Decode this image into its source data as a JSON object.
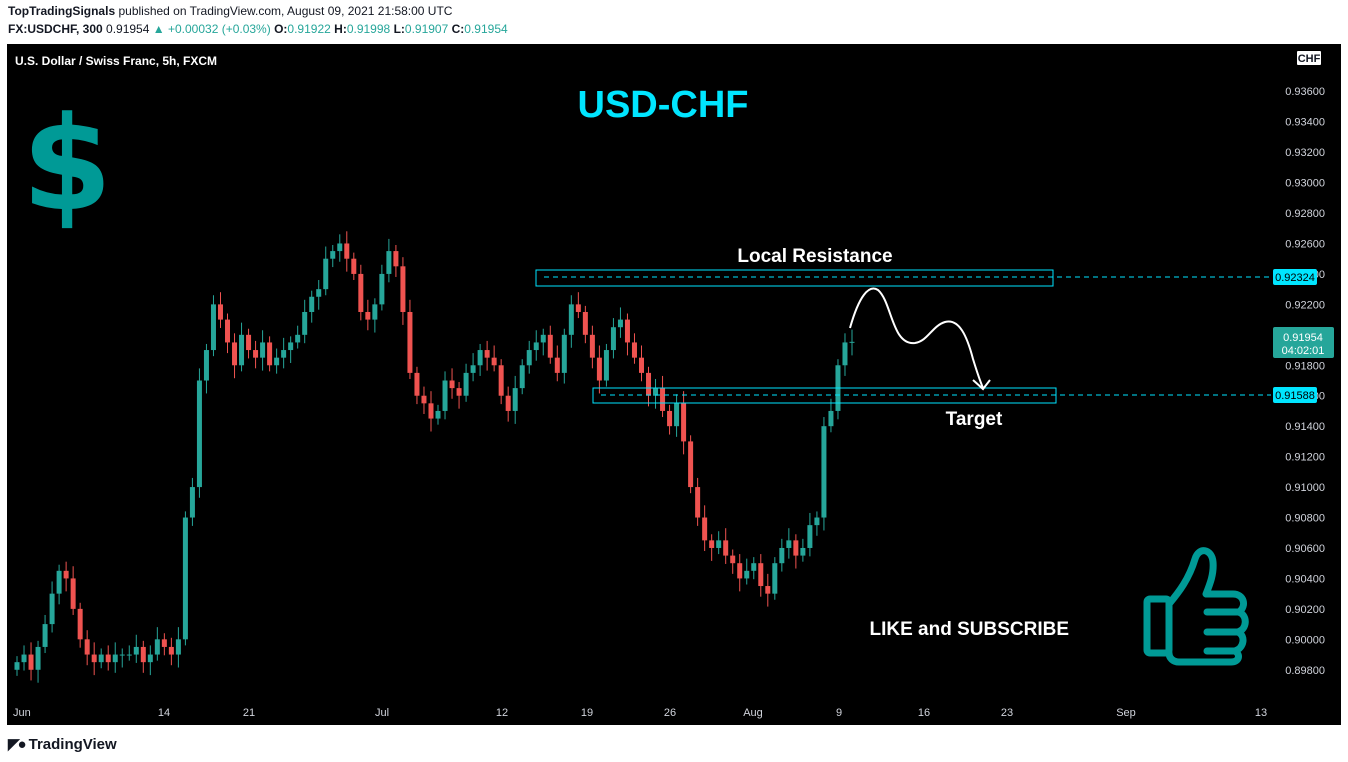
{
  "header": {
    "publisher": "TopTradingSignals",
    "published_text": "published on TradingView.com, August 09, 2021 21:58:00 UTC",
    "symbol": "FX:USDCHF, 300",
    "last": "0.91954",
    "change": "▲ +0.00032 (+0.03%)",
    "o_label": "O:",
    "o": "0.91922",
    "h_label": "H:",
    "h": "0.91998",
    "l_label": "L:",
    "l": "0.91907",
    "c_label": "C:",
    "c": "0.91954"
  },
  "legend": {
    "instrument": "U.S. Dollar / Swiss Franc, 5h, FXCM"
  },
  "annotations": {
    "title": "USD-CHF",
    "dollar": "$",
    "resistance": "Local Resistance",
    "target": "Target",
    "cta": "LIKE and SUBSCRIBE"
  },
  "price_axis": {
    "currency": "CHF",
    "ticks": [
      "0.93600",
      "0.93400",
      "0.93200",
      "0.93000",
      "0.92800",
      "0.92600",
      "0.92400",
      "0.92200",
      "0.92000",
      "0.91800",
      "0.91600",
      "0.91400",
      "0.91200",
      "0.91000",
      "0.90800",
      "0.90600",
      "0.90400",
      "0.90200",
      "0.90000",
      "0.89800"
    ],
    "resistance_label": "0.92324",
    "target_label": "0.91588",
    "current_price": "0.91954",
    "countdown": "04:02:01"
  },
  "time_axis": {
    "ticks": [
      "Jun",
      "14",
      "21",
      "Jul",
      "12",
      "19",
      "26",
      "Aug",
      "9",
      "16",
      "23",
      "Sep",
      "13"
    ]
  },
  "colors": {
    "up": "#26a69a",
    "down": "#ef5350",
    "accent": "#00e5ff",
    "teal": "#009a96",
    "background": "#000000"
  },
  "footer": {
    "brand": "TradingView"
  },
  "chart_data": {
    "type": "candlestick",
    "title": "USD-CHF",
    "xlabel": "",
    "ylabel": "",
    "ylim": [
      0.897,
      0.937
    ],
    "x_ticks": [
      "Jun",
      "14",
      "21",
      "Jul",
      "12",
      "19",
      "26",
      "Aug",
      "9",
      "16",
      "23",
      "Sep",
      "13"
    ],
    "series": [
      {
        "name": "U.S. Dollar / Swiss Franc, 5h, FXCM",
        "close": [
          0.8985,
          0.899,
          0.898,
          0.8995,
          0.901,
          0.903,
          0.9045,
          0.904,
          0.902,
          0.9,
          0.899,
          0.8985,
          0.899,
          0.8985,
          0.899,
          0.899,
          0.899,
          0.8995,
          0.8985,
          0.899,
          0.9,
          0.8995,
          0.899,
          0.9,
          0.908,
          0.91,
          0.917,
          0.919,
          0.922,
          0.921,
          0.9195,
          0.918,
          0.92,
          0.919,
          0.9185,
          0.9195,
          0.918,
          0.9185,
          0.919,
          0.9195,
          0.92,
          0.9215,
          0.9225,
          0.923,
          0.925,
          0.9255,
          0.926,
          0.925,
          0.924,
          0.9215,
          0.921,
          0.922,
          0.924,
          0.9255,
          0.9245,
          0.9215,
          0.9175,
          0.916,
          0.9155,
          0.9145,
          0.915,
          0.917,
          0.9165,
          0.916,
          0.9175,
          0.918,
          0.919,
          0.9185,
          0.918,
          0.916,
          0.915,
          0.9165,
          0.918,
          0.919,
          0.9195,
          0.92,
          0.9185,
          0.9175,
          0.92,
          0.922,
          0.9215,
          0.92,
          0.9185,
          0.917,
          0.919,
          0.9205,
          0.921,
          0.9195,
          0.9185,
          0.9175,
          0.916,
          0.9165,
          0.915,
          0.914,
          0.9155,
          0.913,
          0.91,
          0.908,
          0.9065,
          0.906,
          0.9065,
          0.9055,
          0.905,
          0.904,
          0.9045,
          0.905,
          0.9035,
          0.903,
          0.905,
          0.906,
          0.9065,
          0.9055,
          0.906,
          0.9075,
          0.908,
          0.914,
          0.915,
          0.918,
          0.9195,
          0.91954
        ]
      }
    ],
    "levels": [
      {
        "label": "Local Resistance",
        "price": 0.92324
      },
      {
        "label": "Target",
        "price": 0.91588
      }
    ],
    "current_price": 0.91954,
    "legend": "top-left",
    "grid": false
  }
}
